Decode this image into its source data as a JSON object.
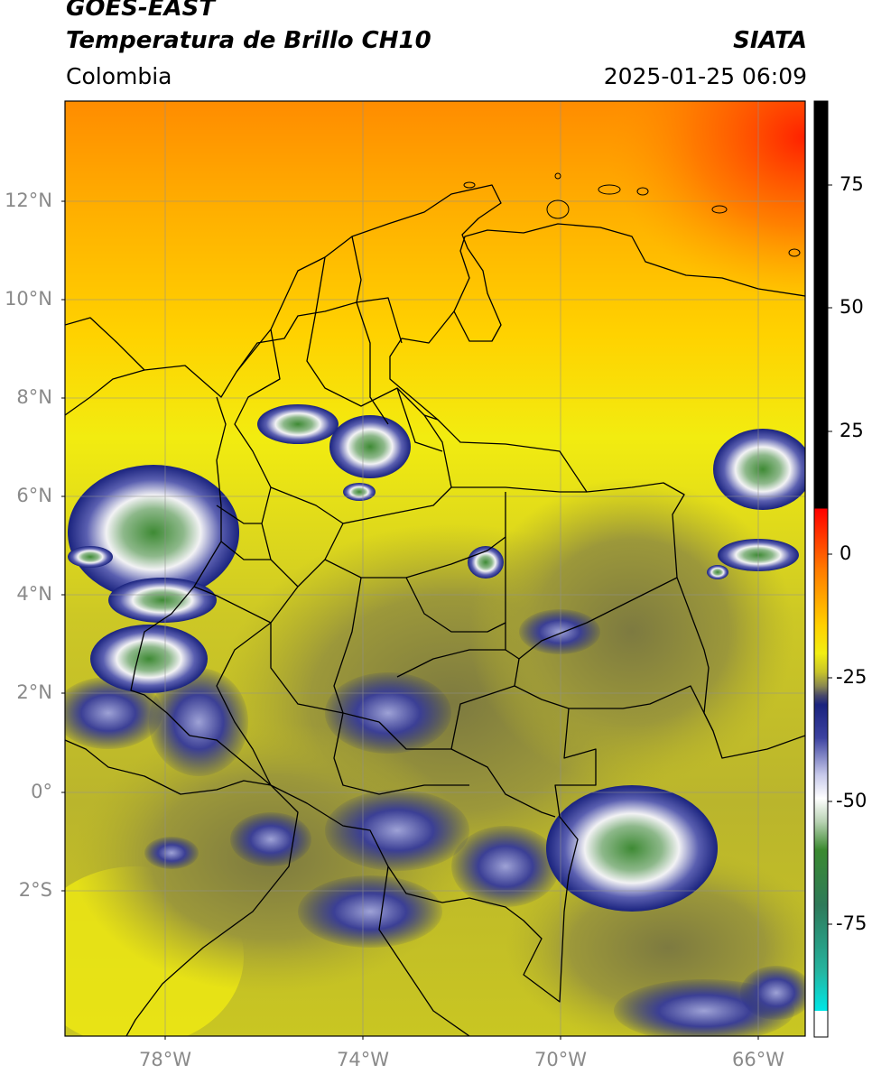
{
  "header": {
    "satellite": "GOES-EAST",
    "product": "Temperatura de Brillo CH10",
    "region": "Colombia",
    "source": "SIATA",
    "datetime": "2025-01-25 06:09"
  },
  "map": {
    "lat_ticks": [
      "12°N",
      "10°N",
      "8°N",
      "6°N",
      "4°N",
      "2°N",
      "0°",
      "2°S"
    ],
    "lon_ticks": [
      "78°W",
      "74°W",
      "70°W",
      "66°W"
    ],
    "colors": {
      "warm_hot": "#ff1a00",
      "warm_orange": "#ff9a00",
      "mid_yellow": "#f2ee12",
      "olive": "#b4b02a",
      "cold_blue": "#1a237e",
      "very_cold_white": "#f5f5f5",
      "coldest_green": "#3e8a34",
      "border": "#000000"
    }
  },
  "colorbar": {
    "ticks": [
      "75",
      "50",
      "25",
      "0",
      "-25",
      "-50",
      "-75"
    ],
    "tick_values": [
      75,
      50,
      25,
      0,
      -25,
      -50,
      -75
    ],
    "range": [
      -95,
      90
    ]
  }
}
